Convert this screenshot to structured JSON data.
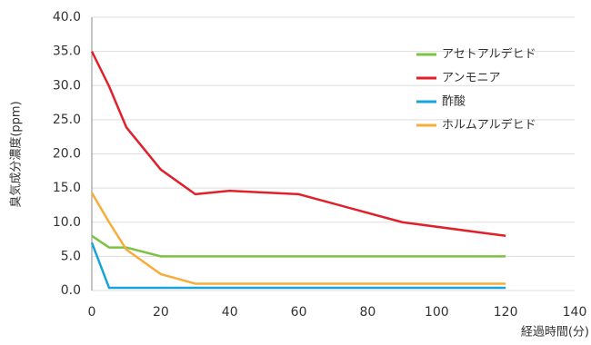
{
  "chart_data": {
    "type": "line",
    "y_label": "臭気成分濃度(ppm)",
    "x_label": "経過時間(分)",
    "x": [
      0,
      5,
      10,
      20,
      30,
      40,
      60,
      90,
      120
    ],
    "series": [
      {
        "name": "アセトアルデヒド",
        "color": "#7dc243",
        "values": [
          8,
          6.3,
          6.3,
          5,
          5,
          5,
          5,
          5,
          5
        ]
      },
      {
        "name": "アンモニア",
        "color": "#e0202a",
        "values": [
          35,
          29.9,
          23.9,
          17.7,
          14.1,
          14.6,
          14.1,
          10,
          8
        ]
      },
      {
        "name": "酢酸",
        "color": "#1aa3db",
        "values": [
          7,
          0.4,
          0.4,
          0.4,
          0.4,
          0.4,
          0.4,
          0.4,
          0.4
        ]
      },
      {
        "name": "ホルムアルデヒド",
        "color": "#f7ad3c",
        "values": [
          14.3,
          10,
          6,
          2.4,
          1,
          1,
          1,
          1,
          1
        ]
      }
    ],
    "xlim": [
      0,
      140
    ],
    "xticks": [
      0,
      20,
      40,
      60,
      80,
      100,
      120,
      140
    ],
    "ylim": [
      0,
      40
    ],
    "yticks": [
      {
        "value": 0,
        "label": "0.0"
      },
      {
        "value": 5,
        "label": "5.0"
      },
      {
        "value": 10,
        "label": "10.0"
      },
      {
        "value": 15,
        "label": "15.0"
      },
      {
        "value": 20,
        "label": "20.0"
      },
      {
        "value": 25,
        "label": "25.0"
      },
      {
        "value": 30,
        "label": "30.0"
      },
      {
        "value": 35,
        "label": "35.0"
      },
      {
        "value": 40,
        "label": "40.0"
      }
    ],
    "grid": true,
    "legend": "upper right"
  }
}
